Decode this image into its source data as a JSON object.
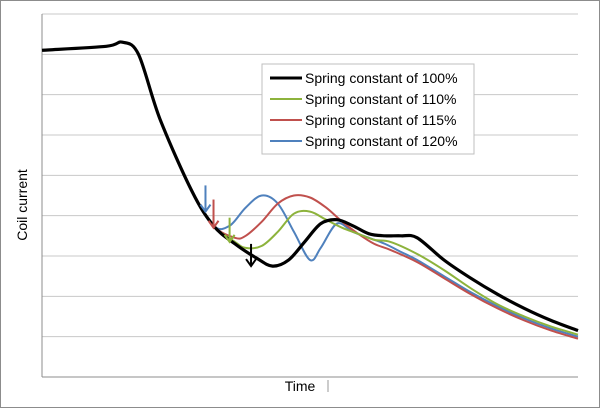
{
  "chart_data": {
    "type": "line",
    "title": "",
    "xlabel": "Time",
    "ylabel": "Coil current",
    "xlim": [
      0,
      100
    ],
    "ylim": [
      0,
      9
    ],
    "grid": true,
    "legend_position": "top-right",
    "series": [
      {
        "name": "Spring constant of 100%",
        "color": "#000000",
        "x": [
          0,
          12,
          15,
          18,
          22,
          28,
          32,
          36,
          40,
          43,
          46,
          49,
          52,
          55,
          58,
          61,
          64,
          67,
          70,
          75,
          80,
          85,
          90,
          95,
          100
        ],
        "y": [
          8.1,
          8.2,
          8.3,
          8.0,
          6.4,
          4.6,
          3.75,
          3.3,
          2.95,
          2.75,
          2.9,
          3.35,
          3.8,
          3.9,
          3.75,
          3.55,
          3.5,
          3.5,
          3.45,
          2.9,
          2.45,
          2.05,
          1.7,
          1.4,
          1.15
        ]
      },
      {
        "name": "Spring constant of 110%",
        "color": "#8db33c",
        "x": [
          0,
          12,
          15,
          18,
          22,
          28,
          32,
          36,
          38,
          41,
          44,
          47,
          50,
          53,
          56,
          59,
          62,
          65,
          70,
          75,
          80,
          85,
          90,
          95,
          100
        ],
        "y": [
          8.1,
          8.2,
          8.3,
          8.0,
          6.4,
          4.6,
          3.75,
          3.35,
          3.2,
          3.25,
          3.6,
          4.05,
          4.1,
          3.9,
          3.7,
          3.55,
          3.4,
          3.35,
          3.05,
          2.65,
          2.2,
          1.8,
          1.5,
          1.25,
          1.05
        ]
      },
      {
        "name": "Spring constant of 115%",
        "color": "#c0504d",
        "x": [
          0,
          12,
          15,
          18,
          22,
          28,
          32,
          36,
          38,
          41,
          44,
          47,
          50,
          53,
          56,
          59,
          62,
          65,
          70,
          75,
          80,
          85,
          90,
          95,
          100
        ],
        "y": [
          8.1,
          8.2,
          8.3,
          8.0,
          6.4,
          4.6,
          3.75,
          3.45,
          3.5,
          3.85,
          4.3,
          4.5,
          4.45,
          4.2,
          3.85,
          3.55,
          3.3,
          3.15,
          2.85,
          2.45,
          2.05,
          1.7,
          1.4,
          1.15,
          0.95
        ]
      },
      {
        "name": "Spring constant of 120%",
        "color": "#4f81bd",
        "x": [
          0,
          12,
          15,
          18,
          22,
          28,
          32,
          35,
          38,
          41,
          44,
          47,
          50,
          52,
          55,
          58,
          61,
          64,
          67,
          70,
          75,
          80,
          85,
          90,
          95,
          100
        ],
        "y": [
          8.1,
          8.2,
          8.3,
          8.0,
          6.4,
          4.6,
          3.75,
          3.75,
          4.2,
          4.5,
          4.3,
          3.6,
          2.9,
          3.2,
          3.8,
          3.6,
          3.45,
          3.3,
          3.1,
          2.9,
          2.5,
          2.1,
          1.75,
          1.45,
          1.2,
          1.0
        ]
      }
    ],
    "arrows": [
      {
        "series_color": "#4f81bd",
        "x": 30.5,
        "y_from": 4.75,
        "y_to": 4.1
      },
      {
        "series_color": "#c0504d",
        "x": 32.0,
        "y_from": 4.4,
        "y_to": 3.7
      },
      {
        "series_color": "#8db33c",
        "x": 35.0,
        "y_from": 3.95,
        "y_to": 3.35
      },
      {
        "series_color": "#000000",
        "x": 39.0,
        "y_from": 3.3,
        "y_to": 2.75
      }
    ]
  }
}
